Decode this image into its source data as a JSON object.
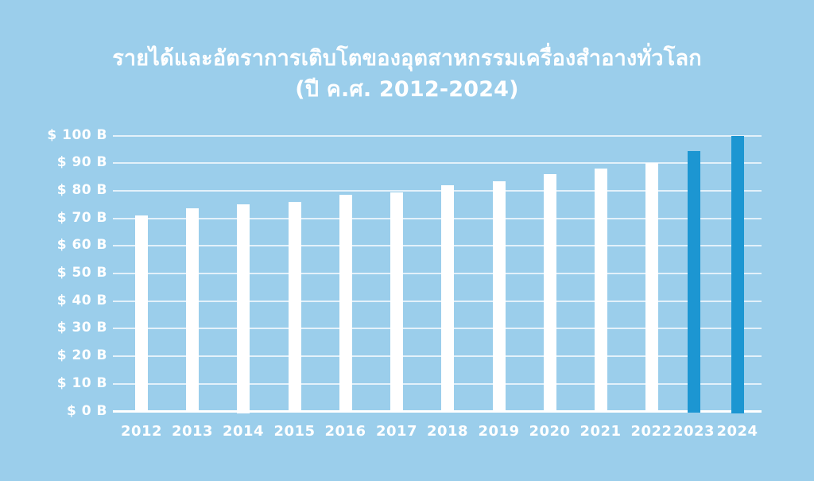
{
  "background_color": "#9BCEEB",
  "title": {
    "line1": "รายได้และอัตราการเติบโตของอุตสาหกรรมเครื่องสำอางทั่วโลก",
    "line2": "(ปี ค.ศ. 2012-2024)"
  },
  "chart_data": {
    "type": "bar",
    "title": "รายได้และอัตราการเติบโตของอุตสาหกรรมเครื่องสำอางทั่วโลก (ปี ค.ศ. 2012-2024)",
    "unit": "USD billions",
    "categories": [
      "2012",
      "2013",
      "2014",
      "2015",
      "2016",
      "2017",
      "2018",
      "2019",
      "2020",
      "2021",
      "2022",
      "2023",
      "2024"
    ],
    "values": [
      71,
      73.5,
      75,
      76,
      78.5,
      79.5,
      82,
      83.5,
      86,
      88,
      90,
      94.5,
      100
    ],
    "ylim": [
      0,
      100
    ],
    "y_tick_step": 10,
    "y_tick_labels": [
      "$ 0 B",
      "$ 10 B",
      "$ 20 B",
      "$ 30 B",
      "$ 40 B",
      "$ 50 B",
      "$ 60 B",
      "$ 70 B",
      "$ 80 B",
      "$ 90 B",
      "$ 100 B"
    ],
    "grid": true,
    "legend": "none",
    "bar_color_default": "#FFFFFF",
    "bar_color_highlight": "#1C96D2",
    "highlighted_categories": [
      "2023",
      "2024"
    ],
    "text_color": "#FFFFFF"
  }
}
